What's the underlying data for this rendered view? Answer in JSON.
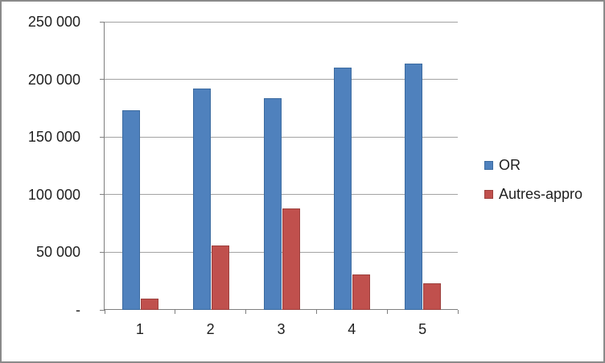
{
  "chart_data": {
    "type": "bar",
    "title": "",
    "xlabel": "",
    "ylabel": "",
    "categories": [
      "1",
      "2",
      "3",
      "4",
      "5"
    ],
    "series": [
      {
        "name": "OR",
        "color": "#4f81bd",
        "border_color": "#3c6ba0",
        "values": [
          173000,
          192000,
          184000,
          210000,
          214000
        ]
      },
      {
        "name": "Autres-appro",
        "color": "#c0504d",
        "border_color": "#9d413e",
        "values": [
          10000,
          56000,
          88000,
          31000,
          23000
        ]
      }
    ],
    "ylim": [
      0,
      250000
    ],
    "ytick_step": 50000,
    "yticks": [
      {
        "value": 0,
        "label": "-"
      },
      {
        "value": 50000,
        "label": "50 000"
      },
      {
        "value": 100000,
        "label": "100 000"
      },
      {
        "value": 150000,
        "label": "150 000"
      },
      {
        "value": 200000,
        "label": "200 000"
      },
      {
        "value": 250000,
        "label": "250 000"
      }
    ],
    "grid": true,
    "legend_position": "right"
  },
  "colors": {
    "bar_blue": "#4f81bd",
    "bar_red": "#c0504d",
    "gridline": "#a3a3a3",
    "axis": "#7f7f7f",
    "frame_border": "#8a8a8a",
    "text": "#1f1f1f",
    "background": "#ffffff"
  }
}
